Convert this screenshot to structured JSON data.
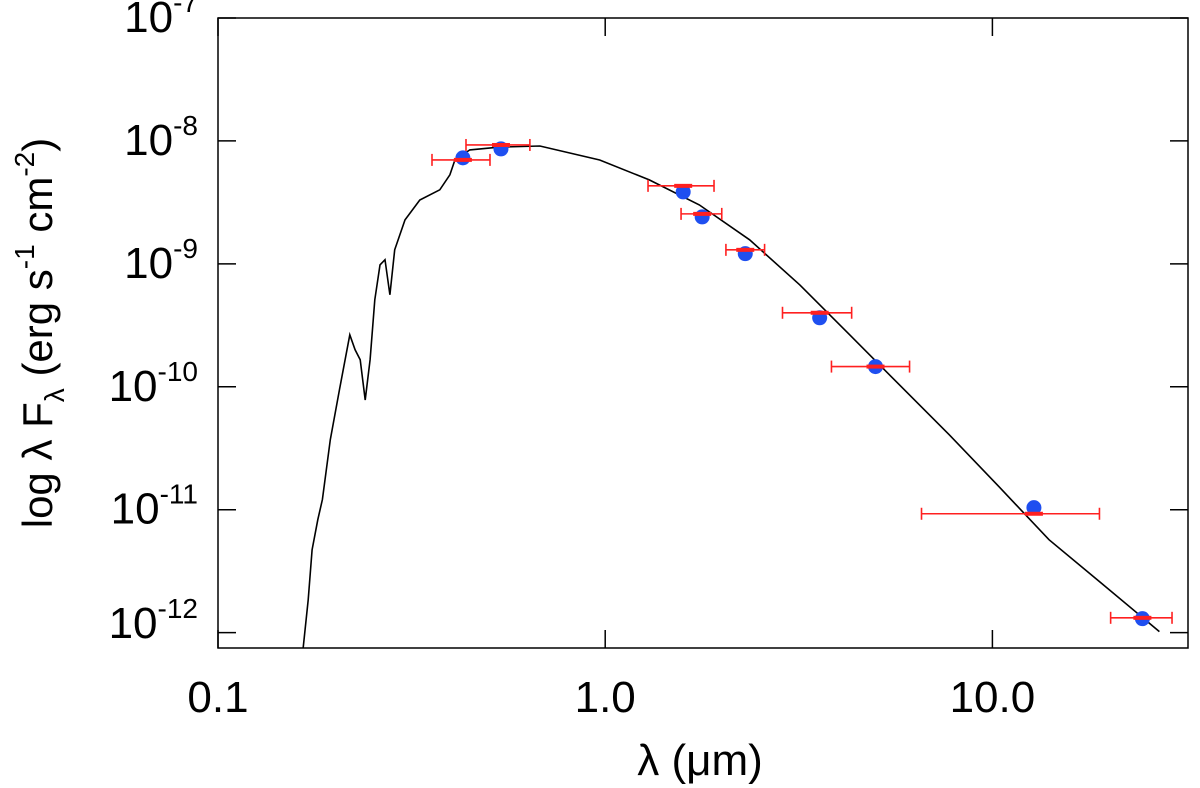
{
  "chart_data": {
    "type": "sed",
    "xlabel": "λ (μm)",
    "ylabel": [
      "log λ F",
      "λ",
      " (erg s",
      "-1",
      " cm",
      "-2",
      ")"
    ],
    "xlog": true,
    "ylog": true,
    "xlim": [
      0.1,
      32
    ],
    "ylim": [
      7.5e-13,
      1e-07
    ],
    "xticks": [
      0.1,
      {
        "value": 1,
        "label": "1.0"
      },
      {
        "value": 10,
        "label": "10.0"
      }
    ],
    "yticks": [
      {
        "value": 1e-07,
        "label": "10",
        "exponent": "-7"
      },
      {
        "value": 1e-08,
        "label": "10",
        "exponent": "-8"
      },
      {
        "value": 1e-09,
        "label": "10",
        "exponent": "-9"
      },
      {
        "value": 1e-10,
        "label": "10",
        "exponent": "-10"
      },
      {
        "value": 1e-11,
        "label": "10",
        "exponent": "-11"
      },
      {
        "value": 1e-12,
        "label": "10",
        "exponent": "-12"
      }
    ],
    "model": {
      "color": "#000000",
      "x": [
        0.166,
        0.171,
        0.175,
        0.181,
        0.186,
        0.195,
        0.206,
        0.219,
        0.226,
        0.233,
        0.24,
        0.247,
        0.254,
        0.262,
        0.27,
        0.278,
        0.286,
        0.304,
        0.332,
        0.374,
        0.397,
        0.409,
        0.447,
        0.534,
        0.678,
        0.968,
        1.3,
        1.75,
        2.36,
        3.18,
        4.28,
        5.75,
        7.74,
        10.4,
        14.0,
        18.9,
        27.0
      ],
      "values": [
        7.55e-13,
        1.85e-12,
        4.73e-12,
        8.3e-12,
        1.21e-11,
        3.71e-11,
        9.5e-11,
        2.65e-10,
        2e-10,
        1.66e-10,
        7.8e-11,
        1.66e-10,
        5.1e-10,
        9.8e-10,
        1.08e-09,
        5.6e-10,
        1.3e-09,
        2.28e-09,
        3.31e-09,
        4e-09,
        5.3e-09,
        7e-09,
        8.45e-09,
        8.9e-09,
        9.1e-09,
        7e-09,
        4.82e-09,
        3.02e-09,
        1.57e-09,
        6.75e-10,
        2.65e-10,
        1.04e-10,
        4.07e-11,
        1.54e-11,
        5.7e-12,
        2.6e-12,
        1.02e-12
      ]
    },
    "photometry": {
      "obs_color": "#ff2020",
      "model_color": "#1f4ff0",
      "x": [
        0.429,
        0.538,
        1.59,
        1.78,
        2.3,
        3.58,
        4.99,
        12.8,
        24.4
      ],
      "x_lo": [
        0.357,
        0.437,
        1.29,
        1.57,
        2.05,
        2.87,
        3.84,
        6.56,
        20.2
      ],
      "x_hi": [
        0.504,
        0.639,
        1.91,
        2.0,
        2.58,
        4.33,
        6.11,
        18.9,
        29.1
      ],
      "observed": [
        7.01e-09,
        9.27e-09,
        4.31e-09,
        2.55e-09,
        1.3e-09,
        4e-10,
        1.46e-10,
        9.27e-12,
        1.32e-12
      ],
      "synthetic": [
        7.28e-09,
        8.61e-09,
        3.85e-09,
        2.41e-09,
        1.21e-09,
        3.64e-10,
        1.46e-10,
        1.04e-11,
        1.3e-12
      ]
    }
  }
}
